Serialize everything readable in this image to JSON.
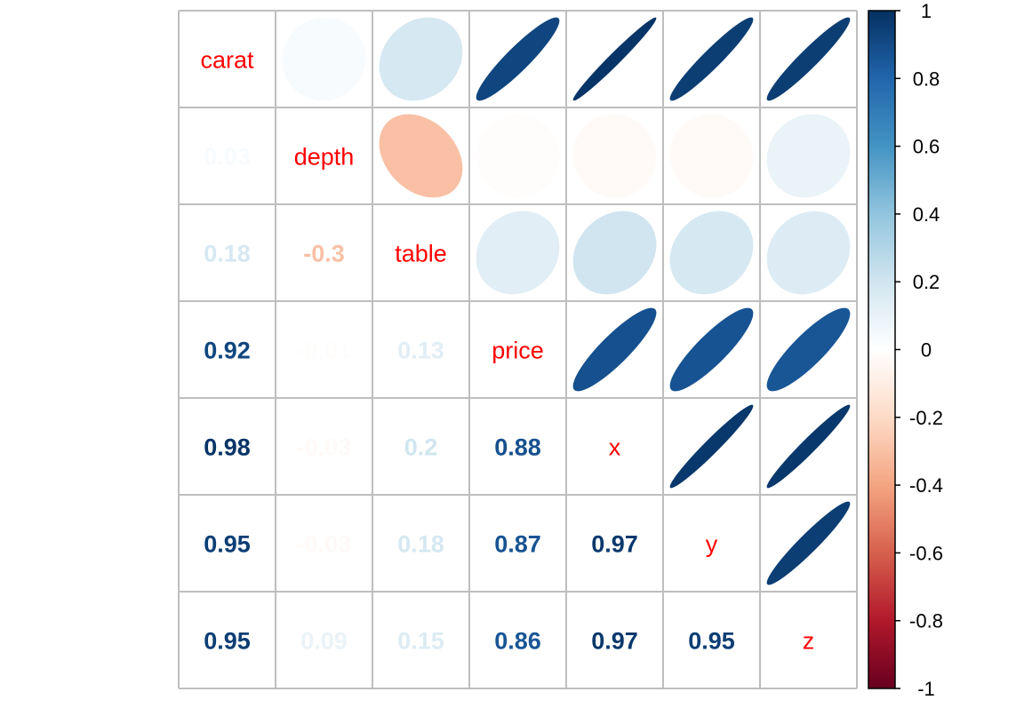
{
  "chart_data": {
    "type": "heatmap",
    "variables": [
      "carat",
      "depth",
      "table",
      "price",
      "x",
      "y",
      "z"
    ],
    "lower_labels": [
      [
        "",
        "",
        "",
        "",
        "",
        "",
        ""
      ],
      [
        "0.03",
        "",
        "",
        "",
        "",
        "",
        ""
      ],
      [
        "0.18",
        "-0.3",
        "",
        "",
        "",
        "",
        ""
      ],
      [
        "0.92",
        "-0.01",
        "0.13",
        "",
        "",
        "",
        ""
      ],
      [
        "0.98",
        "-0.03",
        "0.2",
        "0.88",
        "",
        "",
        ""
      ],
      [
        "0.95",
        "-0.03",
        "0.18",
        "0.87",
        "0.97",
        "",
        ""
      ],
      [
        "0.95",
        "0.09",
        "0.15",
        "0.86",
        "0.97",
        "0.95",
        ""
      ]
    ],
    "matrix": [
      [
        1,
        0.03,
        0.18,
        0.92,
        0.98,
        0.95,
        0.95
      ],
      [
        0.03,
        1,
        -0.3,
        -0.01,
        -0.03,
        -0.03,
        0.09
      ],
      [
        0.18,
        -0.3,
        1,
        0.13,
        0.2,
        0.18,
        0.15
      ],
      [
        0.92,
        -0.01,
        0.13,
        1,
        0.88,
        0.87,
        0.86
      ],
      [
        0.98,
        -0.03,
        0.2,
        0.88,
        1,
        0.97,
        0.97
      ],
      [
        0.95,
        -0.03,
        0.18,
        0.87,
        0.97,
        1,
        0.95
      ],
      [
        0.95,
        0.09,
        0.15,
        0.86,
        0.97,
        0.95,
        1
      ]
    ],
    "upper_glyph": "ellipse",
    "lower_glyph": "number",
    "diagonal_label_color": "#ff0000",
    "colorbar": {
      "range": [
        -1,
        1
      ],
      "ticks": [
        "1",
        "0.8",
        "0.6",
        "0.4",
        "0.2",
        "0",
        "-0.2",
        "-0.4",
        "-0.6",
        "-0.8",
        "-1"
      ],
      "placement": "right"
    },
    "palette": [
      "#67001f",
      "#b2182b",
      "#d6604d",
      "#f4a582",
      "#fddbc7",
      "#ffffff",
      "#d1e5f0",
      "#92c5de",
      "#4393c3",
      "#2166ac",
      "#053061"
    ],
    "grid": true
  }
}
